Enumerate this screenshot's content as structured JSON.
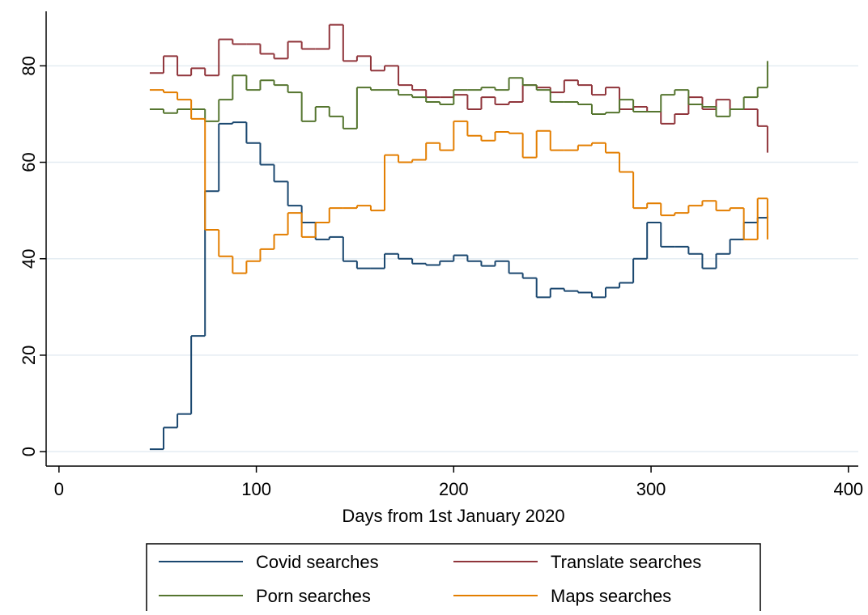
{
  "chart_data": {
    "type": "step",
    "x_label": "Days from 1st January 2020",
    "x": [
      46,
      53,
      60,
      67,
      74,
      81,
      88,
      95,
      102,
      109,
      116,
      123,
      130,
      137,
      144,
      151,
      158,
      165,
      172,
      179,
      186,
      193,
      200,
      207,
      214,
      221,
      228,
      235,
      242,
      249,
      256,
      263,
      270,
      277,
      284,
      291,
      298,
      305,
      312,
      319,
      326,
      333,
      340,
      347,
      354,
      359
    ],
    "series": [
      {
        "name": "Covid searches",
        "color": "#1a476f",
        "values": [
          0.5,
          5,
          7.8,
          24,
          54,
          68,
          68.3,
          64,
          59.5,
          56,
          51,
          47.5,
          44,
          44.5,
          39.5,
          38,
          38,
          41,
          40,
          39,
          38.7,
          39.5,
          40.7,
          39.5,
          38.5,
          39.5,
          37,
          36,
          32,
          33.8,
          33.3,
          33,
          32,
          34,
          35,
          40,
          47.5,
          42.5,
          42.5,
          41,
          38,
          41,
          44,
          47.5,
          48.5,
          48.8
        ]
      },
      {
        "name": "Translate searches",
        "color": "#90353b",
        "values": [
          78.5,
          82,
          78,
          79.5,
          78,
          85.5,
          84.5,
          84.5,
          82.5,
          81.5,
          85,
          83.5,
          83.5,
          88.5,
          81,
          82,
          79,
          80,
          76,
          75,
          73.5,
          73.5,
          74,
          71,
          73.5,
          72,
          72.5,
          76,
          75.5,
          74.5,
          77,
          76,
          74,
          75.5,
          71,
          71.5,
          70.5,
          68,
          70,
          73.5,
          71,
          73,
          71,
          71,
          67.5,
          62
        ]
      },
      {
        "name": "Porn searches",
        "color": "#55752f",
        "values": [
          71,
          70.2,
          71,
          71,
          68.5,
          73,
          78,
          75,
          77,
          76,
          74.5,
          68.5,
          71.5,
          69.5,
          67,
          75.5,
          75,
          75,
          74,
          73.5,
          72.5,
          72,
          75,
          75,
          75.5,
          75,
          77.5,
          76,
          75,
          72.5,
          72.5,
          72,
          70,
          70.3,
          73,
          70.5,
          70.5,
          74,
          75,
          72,
          71.5,
          69.5,
          71,
          73.5,
          75.5,
          81
        ]
      },
      {
        "name": "Maps searches",
        "color": "#e37e00",
        "values": [
          75,
          74.5,
          73,
          69,
          46,
          40.5,
          37,
          39.5,
          42,
          45,
          49.5,
          44.5,
          47.5,
          50.5,
          50.5,
          51,
          50,
          61.5,
          60,
          60.5,
          64,
          62.5,
          68.5,
          65.5,
          64.5,
          66.3,
          66,
          61,
          66.5,
          62.5,
          62.5,
          63.5,
          64,
          62,
          58,
          50.5,
          51.5,
          49,
          49.5,
          51,
          52,
          50,
          50.5,
          44,
          52.5,
          44
        ]
      }
    ],
    "xlim": [
      -6.5,
      405
    ],
    "ylim": [
      -3,
      91.3
    ],
    "xticks": [
      0,
      100,
      200,
      300,
      400
    ],
    "yticks": [
      0,
      20,
      40,
      60,
      80
    ],
    "grid": true
  }
}
